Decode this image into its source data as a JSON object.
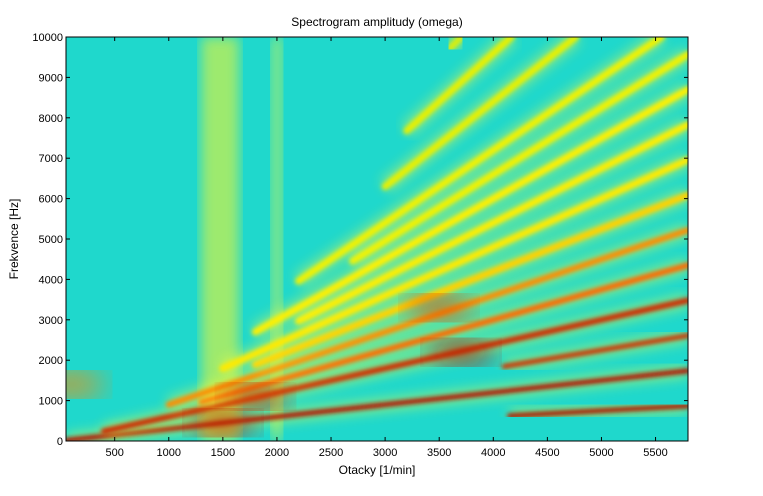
{
  "chart_data": {
    "type": "heatmap",
    "title": "Spectrogram amplitudy (omega)",
    "xlabel": "Otacky [1/min]",
    "ylabel": "Frekvence [Hz]",
    "xlim": [
      50,
      5800
    ],
    "ylim": [
      0,
      10000
    ],
    "xticks": [
      500,
      1000,
      1500,
      2000,
      2500,
      3000,
      3500,
      4000,
      4500,
      5000,
      5500
    ],
    "yticks": [
      0,
      1000,
      2000,
      3000,
      4000,
      5000,
      6000,
      7000,
      8000,
      9000,
      10000
    ],
    "colormap": "jet",
    "background_color": "#1fd8cc",
    "order_lines": [
      {
        "slope_hz_per_rpm": 0.15,
        "x_start": 4150,
        "color": "#b01a00"
      },
      {
        "slope_hz_per_rpm": 0.3,
        "x_start": 50,
        "color": "#b51500"
      },
      {
        "slope_hz_per_rpm": 0.45,
        "x_start": 4100,
        "color": "#d03000"
      },
      {
        "slope_hz_per_rpm": 0.6,
        "x_start": 400,
        "color": "#d02a00"
      },
      {
        "slope_hz_per_rpm": 0.75,
        "x_start": 1300,
        "color": "#ff6a00"
      },
      {
        "slope_hz_per_rpm": 0.9,
        "x_start": 1000,
        "color": "#ff8c00"
      },
      {
        "slope_hz_per_rpm": 1.05,
        "x_start": 1800,
        "color": "#ffd200"
      },
      {
        "slope_hz_per_rpm": 1.2,
        "x_start": 1500,
        "color": "#ffea00"
      },
      {
        "slope_hz_per_rpm": 1.35,
        "x_start": 2200,
        "color": "#ffee00"
      },
      {
        "slope_hz_per_rpm": 1.5,
        "x_start": 1800,
        "color": "#fff000"
      },
      {
        "slope_hz_per_rpm": 1.65,
        "x_start": 2700,
        "color": "#f2f200"
      },
      {
        "slope_hz_per_rpm": 1.8,
        "x_start": 2200,
        "color": "#f2f200"
      },
      {
        "slope_hz_per_rpm": 2.1,
        "x_start": 3000,
        "color": "#e8f000"
      },
      {
        "slope_hz_per_rpm": 2.4,
        "x_start": 3200,
        "color": "#e8f000"
      },
      {
        "slope_hz_per_rpm": 2.7,
        "x_start": 3600,
        "color": "#d8ee10"
      }
    ],
    "hot_spots": [
      {
        "x": 3700,
        "y": 2200,
        "color": "#b82000"
      },
      {
        "x": 3500,
        "y": 3300,
        "color": "#e05000"
      },
      {
        "x": 1500,
        "y": 450,
        "color": "#c02000"
      },
      {
        "x": 1800,
        "y": 1100,
        "color": "#d03000"
      },
      {
        "x": 100,
        "y": 1400,
        "color": "#ff8a00"
      }
    ],
    "vertical_bands": [
      {
        "x_from": 1300,
        "x_to": 1650,
        "color": "#c8f050"
      },
      {
        "x_from": 1950,
        "x_to": 2050,
        "color": "#b8f060"
      }
    ]
  }
}
